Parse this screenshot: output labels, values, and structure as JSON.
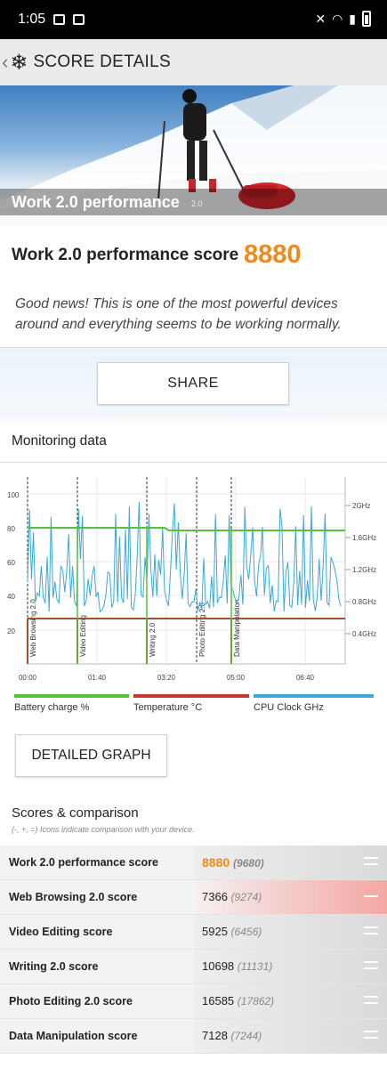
{
  "status": {
    "time": "1:05"
  },
  "header": {
    "back": "‹",
    "logo": "❄",
    "title": "SCORE DETAILS"
  },
  "hero": {
    "title": "Work 2.0 performance",
    "version": "2.0"
  },
  "score": {
    "label": "Work 2.0 performance score",
    "value": "8880"
  },
  "description": "Good news! This is one of the most powerful devices around and everything seems to be working normally.",
  "share_label": "SHARE",
  "monitoring": {
    "title": "Monitoring data",
    "chart_data": {
      "type": "line",
      "y_left_ticks": [
        "100",
        "80",
        "60",
        "40",
        "20"
      ],
      "y_right_ticks": [
        "2GHz",
        "1.6GHz",
        "1.2GHz",
        "0.8GHz",
        "0.4GHz"
      ],
      "x_ticks": [
        "00:00",
        "01:40",
        "03:20",
        "05:00",
        "06:40"
      ],
      "segments": [
        "Web Browsing 2.0",
        "Video Editing",
        "Writing 2.0",
        "Photo Editing 2.0",
        "Data Manipulation"
      ],
      "series": [
        {
          "name": "Battery charge %",
          "color": "#5cbf3a"
        },
        {
          "name": "Temperature °C",
          "color": "#c0392b"
        },
        {
          "name": "CPU Clock GHz",
          "color": "#3aa9d6"
        }
      ]
    },
    "legend": [
      "Battery charge %",
      "Temperature °C",
      "CPU Clock GHz"
    ]
  },
  "detailed_graph_label": "DETAILED GRAPH",
  "scores": {
    "title": "Scores & comparison",
    "note": "(-, +, =) Icons indicate comparison with your device.",
    "rows": [
      {
        "name": "Work 2.0 performance score",
        "value": "8880",
        "ref": "(9680)"
      },
      {
        "name": "Web Browsing 2.0 score",
        "value": "7366",
        "ref": "(9274)"
      },
      {
        "name": "Video Editing score",
        "value": "5925",
        "ref": "(6456)"
      },
      {
        "name": "Writing 2.0 score",
        "value": "10698",
        "ref": "(11131)"
      },
      {
        "name": "Photo Editing 2.0 score",
        "value": "16585",
        "ref": "(17862)"
      },
      {
        "name": "Data Manipulation score",
        "value": "7128",
        "ref": "(7244)"
      }
    ]
  }
}
